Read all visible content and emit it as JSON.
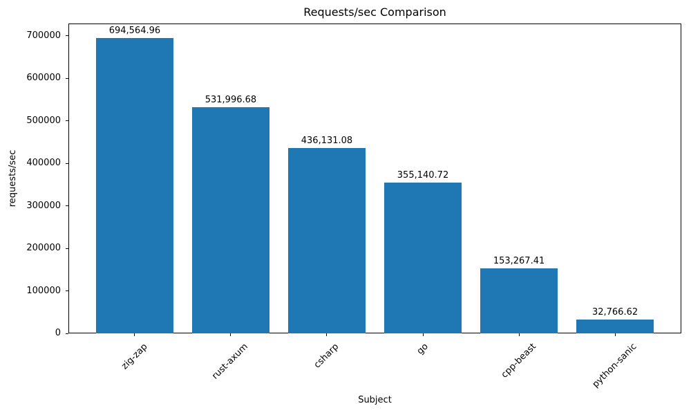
{
  "chart_data": {
    "type": "bar",
    "title": "Requests/sec Comparison",
    "xlabel": "Subject",
    "ylabel": "requests/sec",
    "categories": [
      "zig-zap",
      "rust-axum",
      "csharp",
      "go",
      "cpp-beast",
      "python-sanic"
    ],
    "values": [
      694564.96,
      531996.68,
      436131.08,
      355140.72,
      153267.41,
      32766.62
    ],
    "value_labels": [
      "694,564.96",
      "531,996.68",
      "436,131.08",
      "355,140.72",
      "153,267.41",
      "32,766.62"
    ],
    "ytick_values": [
      0,
      100000,
      200000,
      300000,
      400000,
      500000,
      600000,
      700000
    ],
    "ytick_labels": [
      "0",
      "100000",
      "200000",
      "300000",
      "400000",
      "500000",
      "600000",
      "700000"
    ],
    "ylim": [
      0,
      729293
    ],
    "bar_width_fraction": 0.8,
    "bar_color": "#1f77b4",
    "text_color": "#000000",
    "background_color": "#ffffff",
    "grid": false,
    "legend_position": "none"
  }
}
